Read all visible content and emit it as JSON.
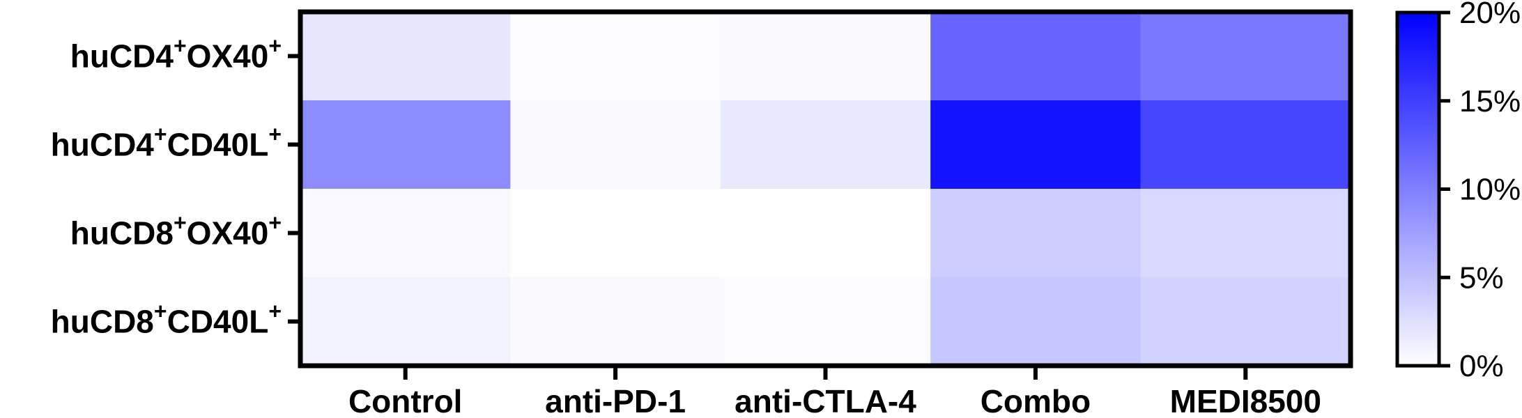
{
  "chart_data": {
    "type": "heatmap",
    "rows": [
      {
        "base": "huCD4",
        "sup1": "+",
        "mid": "OX40",
        "sup2": "+"
      },
      {
        "base": "huCD4",
        "sup1": "+",
        "mid": "CD40L",
        "sup2": "+"
      },
      {
        "base": "huCD8",
        "sup1": "+",
        "mid": "OX40",
        "sup2": "+"
      },
      {
        "base": "huCD8",
        "sup1": "+",
        "mid": "CD40L",
        "sup2": "+"
      }
    ],
    "columns": [
      "Control",
      "anti-PD-1",
      "anti-CTLA-4",
      "Combo",
      "MEDI8500"
    ],
    "values": [
      [
        2.0,
        0.2,
        0.3,
        12.0,
        10.5
      ],
      [
        9.0,
        0.3,
        1.7,
        18.5,
        14.5
      ],
      [
        0.5,
        0.1,
        0.1,
        4.0,
        3.0
      ],
      [
        1.0,
        0.3,
        0.2,
        4.5,
        3.5
      ]
    ],
    "colorbar": {
      "min": 0,
      "max": 20,
      "ticks": [
        "0%",
        "5%",
        "10%",
        "15%",
        "20%"
      ],
      "low_color": "#ffffff",
      "high_color": "#0000ff"
    }
  }
}
